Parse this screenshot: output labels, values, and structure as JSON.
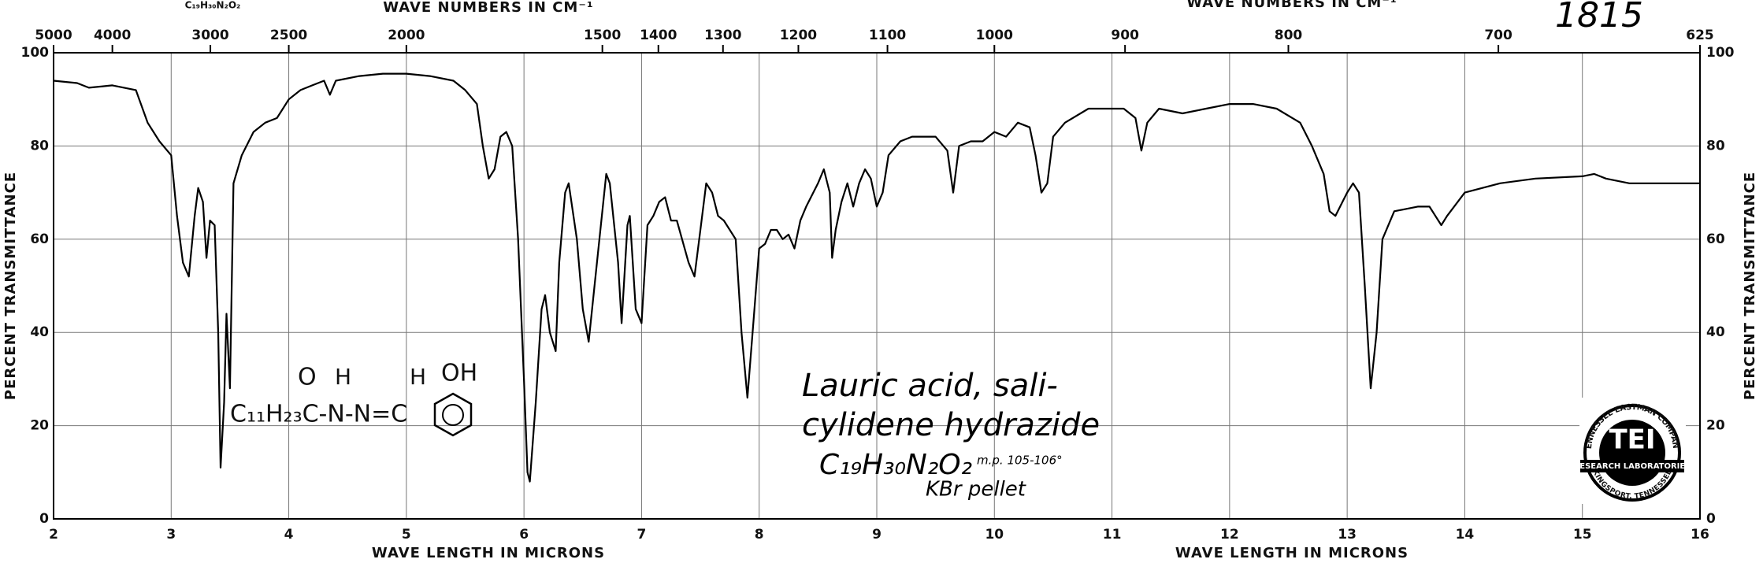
{
  "chart_data": {
    "type": "line",
    "xlabel": "WAVE LENGTH IN MICRONS",
    "ylabel": "PERCENT TRANSMITTANCE",
    "x2label": "WAVE NUMBERS IN CM⁻¹",
    "xlim": [
      2,
      16
    ],
    "ylim": [
      0,
      100
    ],
    "xticks": [
      2,
      3,
      4,
      5,
      6,
      7,
      8,
      9,
      10,
      11,
      12,
      13,
      14,
      15,
      16
    ],
    "yticks": [
      0,
      20,
      40,
      60,
      80,
      100
    ],
    "x2ticks": [
      5000,
      4000,
      3000,
      2500,
      2000,
      1500,
      1400,
      1300,
      1200,
      1100,
      1000,
      900,
      800,
      700,
      625
    ],
    "grid": true,
    "color": "#000000",
    "x": [
      2.0,
      2.2,
      2.3,
      2.5,
      2.7,
      2.8,
      2.9,
      3.0,
      3.05,
      3.1,
      3.15,
      3.2,
      3.23,
      3.27,
      3.3,
      3.33,
      3.37,
      3.4,
      3.42,
      3.45,
      3.47,
      3.5,
      3.53,
      3.6,
      3.7,
      3.8,
      3.9,
      4.0,
      4.1,
      4.2,
      4.3,
      4.35,
      4.4,
      4.6,
      4.8,
      5.0,
      5.2,
      5.4,
      5.5,
      5.6,
      5.65,
      5.7,
      5.75,
      5.8,
      5.85,
      5.9,
      5.95,
      6.0,
      6.03,
      6.05,
      6.1,
      6.15,
      6.18,
      6.22,
      6.27,
      6.3,
      6.35,
      6.38,
      6.45,
      6.5,
      6.55,
      6.6,
      6.7,
      6.73,
      6.8,
      6.83,
      6.88,
      6.9,
      6.95,
      7.0,
      7.05,
      7.1,
      7.15,
      7.2,
      7.25,
      7.3,
      7.4,
      7.45,
      7.5,
      7.55,
      7.6,
      7.65,
      7.7,
      7.8,
      7.85,
      7.9,
      7.95,
      8.0,
      8.05,
      8.1,
      8.15,
      8.2,
      8.25,
      8.3,
      8.35,
      8.4,
      8.5,
      8.55,
      8.6,
      8.62,
      8.65,
      8.7,
      8.75,
      8.8,
      8.85,
      8.9,
      8.95,
      9.0,
      9.05,
      9.1,
      9.2,
      9.3,
      9.5,
      9.6,
      9.65,
      9.7,
      9.8,
      9.9,
      10.0,
      10.1,
      10.2,
      10.3,
      10.35,
      10.4,
      10.45,
      10.5,
      10.6,
      10.8,
      11.0,
      11.1,
      11.2,
      11.25,
      11.3,
      11.4,
      11.6,
      11.8,
      12.0,
      12.2,
      12.4,
      12.6,
      12.7,
      12.8,
      12.85,
      12.9,
      13.0,
      13.05,
      13.1,
      13.15,
      13.2,
      13.25,
      13.3,
      13.4,
      13.6,
      13.7,
      13.75,
      13.8,
      13.85,
      14.0,
      14.3,
      14.6,
      15.0,
      15.1,
      15.2,
      15.4,
      15.6,
      16.0
    ],
    "values": [
      94,
      93.5,
      92.5,
      93,
      92,
      85,
      81,
      78,
      65,
      55,
      52,
      65,
      71,
      68,
      56,
      64,
      63,
      40,
      11,
      25,
      44,
      28,
      72,
      78,
      83,
      85,
      86,
      90,
      92,
      93,
      94,
      91,
      94,
      95,
      95.5,
      95.5,
      95,
      94,
      92,
      89,
      80,
      73,
      75,
      82,
      83,
      80,
      60,
      30,
      10,
      8,
      25,
      45,
      48,
      40,
      36,
      55,
      70,
      72,
      60,
      45,
      38,
      50,
      74,
      72,
      55,
      42,
      63,
      65,
      45,
      42,
      63,
      65,
      68,
      69,
      64,
      64,
      55,
      52,
      62,
      72,
      70,
      65,
      64,
      60,
      40,
      26,
      42,
      58,
      59,
      62,
      62,
      60,
      61,
      58,
      64,
      67,
      72,
      75,
      70,
      56,
      62,
      68,
      72,
      67,
      72,
      75,
      73,
      67,
      70,
      78,
      81,
      82,
      82,
      79,
      70,
      80,
      81,
      81,
      83,
      82,
      85,
      84,
      78,
      70,
      72,
      82,
      85,
      88,
      88,
      88,
      86,
      79,
      85,
      88,
      87,
      88,
      89,
      89,
      88,
      85,
      80,
      74,
      66,
      65,
      70,
      72,
      70,
      50,
      28,
      40,
      60,
      66,
      67,
      67,
      65,
      63,
      65,
      70,
      72,
      73,
      73.5,
      74,
      73,
      72,
      72,
      72
    ]
  },
  "annotations": {
    "top_formula": "C₁₉H₃₀N₂O₂",
    "spectrum_number": "1815",
    "name_line1": "Lauric acid, sali-",
    "name_line2": "cylidene hydrazide",
    "formula": "C₁₉H₃₀N₂O₂",
    "mp": "m.p. 105-106°",
    "medium": "KBr pellet"
  },
  "structure": {
    "chain": "C₁₁H₂₃C-N-N=C",
    "o": "O",
    "h1": "H",
    "h2": "H",
    "oh": "OH"
  },
  "logo": {
    "ring_top": "TENNESSEE EASTMAN COMPANY",
    "initials": "TEI",
    "band": "RESEARCH LABORATORIES",
    "ring_bottom": "KINGSPORT, TENNESSEE"
  }
}
